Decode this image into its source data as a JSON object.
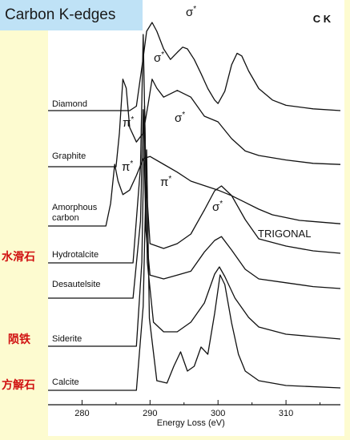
{
  "header": {
    "title": "Carbon K-edges"
  },
  "side_labels": [
    "水滑石",
    "陨铁",
    "方解石"
  ],
  "chart_data": {
    "type": "line",
    "title": "C K",
    "xlabel": "Energy Loss (eV)",
    "xlim": [
      275,
      318
    ],
    "x_ticks": [
      280,
      290,
      300,
      310
    ],
    "grid": false,
    "section_label": "TRIGONAL",
    "series": [
      {
        "name": "Diamond",
        "points": [
          [
            275,
            0
          ],
          [
            287,
            0
          ],
          [
            288,
            0.05
          ],
          [
            289,
            0.6
          ],
          [
            289.5,
            0.9
          ],
          [
            290.3,
            1.0
          ],
          [
            291,
            0.9
          ],
          [
            292,
            0.7
          ],
          [
            293,
            0.58
          ],
          [
            294,
            0.66
          ],
          [
            294.8,
            0.72
          ],
          [
            295.5,
            0.7
          ],
          [
            296.5,
            0.58
          ],
          [
            297.5,
            0.42
          ],
          [
            298.5,
            0.25
          ],
          [
            299.5,
            0.12
          ],
          [
            300,
            0.08
          ],
          [
            301,
            0.22
          ],
          [
            302,
            0.52
          ],
          [
            302.8,
            0.65
          ],
          [
            303.5,
            0.62
          ],
          [
            304.5,
            0.45
          ],
          [
            306,
            0.25
          ],
          [
            308,
            0.12
          ],
          [
            310,
            0.06
          ],
          [
            314,
            0.02
          ],
          [
            318,
            0
          ]
        ]
      },
      {
        "name": "Graphite",
        "points": [
          [
            275,
            0
          ],
          [
            285,
            0
          ],
          [
            285.5,
            0.3
          ],
          [
            286,
            0.78
          ],
          [
            286.5,
            0.7
          ],
          [
            287,
            0.35
          ],
          [
            288,
            0.22
          ],
          [
            289,
            0.3
          ],
          [
            289.7,
            0.55
          ],
          [
            290.3,
            0.78
          ],
          [
            291,
            0.7
          ],
          [
            292,
            0.62
          ],
          [
            294,
            0.68
          ],
          [
            296,
            0.62
          ],
          [
            298,
            0.45
          ],
          [
            300,
            0.4
          ],
          [
            302,
            0.25
          ],
          [
            304,
            0.14
          ],
          [
            306,
            0.1
          ],
          [
            310,
            0.06
          ],
          [
            314,
            0.03
          ],
          [
            318,
            0.02
          ]
        ]
      },
      {
        "name": "Amorphous carbon",
        "points": [
          [
            275,
            0
          ],
          [
            283.5,
            0
          ],
          [
            284.2,
            0.2
          ],
          [
            284.8,
            0.55
          ],
          [
            285.3,
            0.4
          ],
          [
            286,
            0.28
          ],
          [
            287,
            0.32
          ],
          [
            288,
            0.45
          ],
          [
            289,
            0.6
          ],
          [
            290,
            0.62
          ],
          [
            292,
            0.55
          ],
          [
            294,
            0.48
          ],
          [
            296,
            0.4
          ],
          [
            298,
            0.36
          ],
          [
            300,
            0.32
          ],
          [
            302,
            0.27
          ],
          [
            304,
            0.21
          ],
          [
            306,
            0.15
          ],
          [
            308,
            0.1
          ],
          [
            312,
            0.05
          ],
          [
            318,
            0.02
          ]
        ]
      },
      {
        "name": "Hydrotalcite",
        "points": [
          [
            275,
            0
          ],
          [
            287.5,
            0
          ],
          [
            288.6,
            0.4
          ],
          [
            289,
            0.95
          ],
          [
            289.4,
            0.35
          ],
          [
            290,
            0.08
          ],
          [
            292,
            0.06
          ],
          [
            294,
            0.08
          ],
          [
            296,
            0.12
          ],
          [
            298,
            0.22
          ],
          [
            299.5,
            0.3
          ],
          [
            300.5,
            0.32
          ],
          [
            302,
            0.28
          ],
          [
            304,
            0.18
          ],
          [
            306,
            0.1
          ],
          [
            310,
            0.07
          ],
          [
            314,
            0.05
          ],
          [
            318,
            0.04
          ]
        ]
      },
      {
        "name": "Desautelsite",
        "points": [
          [
            275,
            0
          ],
          [
            287.5,
            0
          ],
          [
            288.6,
            0.4
          ],
          [
            289,
            0.98
          ],
          [
            289.4,
            0.35
          ],
          [
            290,
            0.12
          ],
          [
            292,
            0.1
          ],
          [
            294,
            0.12
          ],
          [
            296,
            0.14
          ],
          [
            298,
            0.24
          ],
          [
            299.5,
            0.3
          ],
          [
            300.5,
            0.32
          ],
          [
            302,
            0.25
          ],
          [
            304,
            0.15
          ],
          [
            306,
            0.1
          ],
          [
            310,
            0.08
          ],
          [
            314,
            0.06
          ],
          [
            318,
            0.05
          ]
        ]
      },
      {
        "name": "Siderite",
        "points": [
          [
            275,
            0
          ],
          [
            288,
            0
          ],
          [
            288.8,
            0.35
          ],
          [
            289.2,
            1.0
          ],
          [
            289.6,
            0.35
          ],
          [
            290.5,
            0.1
          ],
          [
            292,
            0.06
          ],
          [
            294,
            0.06
          ],
          [
            296,
            0.1
          ],
          [
            298,
            0.18
          ],
          [
            299.5,
            0.3
          ],
          [
            300.2,
            0.33
          ],
          [
            301,
            0.29
          ],
          [
            302.5,
            0.2
          ],
          [
            304.5,
            0.12
          ],
          [
            306,
            0.08
          ],
          [
            310,
            0.05
          ],
          [
            314,
            0.04
          ],
          [
            318,
            0.03
          ]
        ]
      },
      {
        "name": "Calcite",
        "points": [
          [
            275,
            0
          ],
          [
            288,
            0
          ],
          [
            289,
            0.35
          ],
          [
            289.5,
            1.0
          ],
          [
            289.9,
            0.3
          ],
          [
            291,
            0.04
          ],
          [
            292.5,
            0.03
          ],
          [
            293.5,
            0.1
          ],
          [
            294.5,
            0.16
          ],
          [
            295.5,
            0.08
          ],
          [
            296.5,
            0.1
          ],
          [
            297.5,
            0.18
          ],
          [
            298.5,
            0.15
          ],
          [
            299.5,
            0.32
          ],
          [
            300.3,
            0.48
          ],
          [
            301,
            0.44
          ],
          [
            302,
            0.28
          ],
          [
            303,
            0.15
          ],
          [
            304,
            0.08
          ],
          [
            306,
            0.04
          ],
          [
            310,
            0.02
          ],
          [
            318,
            0.01
          ]
        ]
      }
    ],
    "annotations": [
      "σ*",
      "σ*",
      "π*",
      "σ*",
      "π*",
      "π*",
      "σ*"
    ]
  }
}
